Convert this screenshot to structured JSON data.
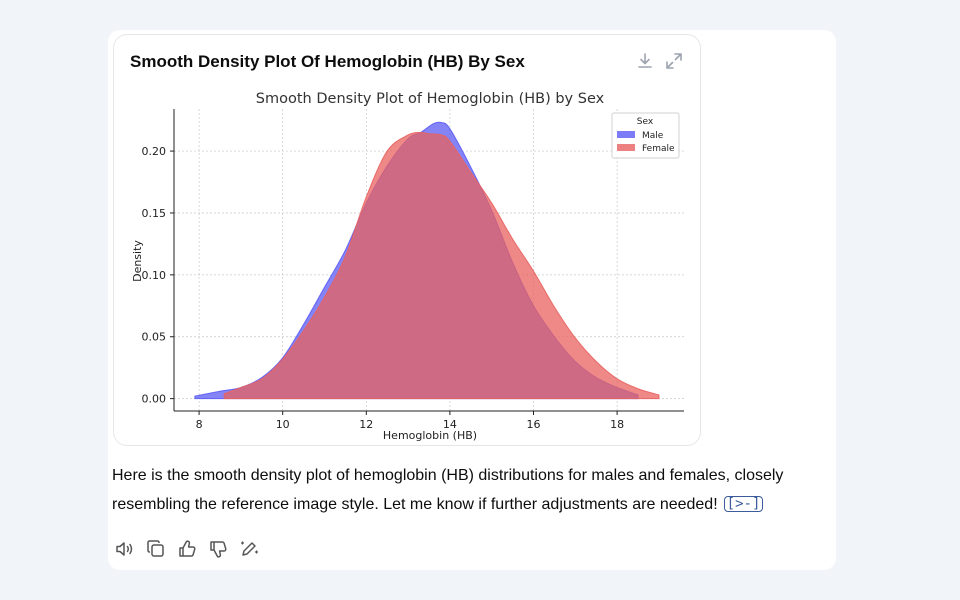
{
  "card": {
    "title": "Smooth Density Plot Of Hemoglobin (HB) By Sex",
    "download_icon": "download-icon",
    "expand_icon": "expand-icon"
  },
  "chart_data": {
    "type": "area",
    "title": "Smooth Density Plot of Hemoglobin (HB) by Sex",
    "xlabel": "Hemoglobin (HB)",
    "ylabel": "Density",
    "xlim": [
      7.4,
      19.6
    ],
    "ylim": [
      -0.01,
      0.234
    ],
    "xticks": [
      8,
      10,
      12,
      14,
      16,
      18
    ],
    "xtick_labels": [
      "8",
      "10",
      "12",
      "14",
      "16",
      "18"
    ],
    "yticks": [
      0.0,
      0.05,
      0.1,
      0.15,
      0.2
    ],
    "ytick_labels": [
      "0.00",
      "0.05",
      "0.10",
      "0.15",
      "0.20"
    ],
    "grid": true,
    "legend": {
      "title": "Sex",
      "position": "top-right"
    },
    "series": [
      {
        "name": "Male",
        "color": "#5b5bf4",
        "x": [
          7.9,
          8.5,
          9.0,
          9.5,
          10.0,
          10.5,
          11.0,
          11.5,
          12.0,
          12.5,
          13.0,
          13.3,
          13.6,
          13.8,
          14.0,
          14.5,
          15.0,
          15.5,
          16.0,
          16.5,
          17.0,
          17.5,
          18.0,
          18.5
        ],
        "values": [
          0.002,
          0.006,
          0.009,
          0.017,
          0.033,
          0.06,
          0.09,
          0.12,
          0.158,
          0.188,
          0.21,
          0.215,
          0.222,
          0.223,
          0.218,
          0.187,
          0.152,
          0.11,
          0.075,
          0.05,
          0.03,
          0.017,
          0.009,
          0.003
        ]
      },
      {
        "name": "Female",
        "color": "#e8625f",
        "x": [
          8.6,
          9.0,
          9.5,
          10.0,
          10.5,
          11.0,
          11.5,
          12.0,
          12.5,
          13.0,
          13.3,
          13.5,
          13.8,
          14.0,
          14.5,
          15.0,
          15.5,
          16.0,
          16.5,
          17.0,
          17.5,
          18.0,
          18.5,
          19.0
        ],
        "values": [
          0.004,
          0.009,
          0.016,
          0.032,
          0.055,
          0.082,
          0.115,
          0.163,
          0.2,
          0.213,
          0.215,
          0.214,
          0.213,
          0.208,
          0.183,
          0.158,
          0.129,
          0.103,
          0.074,
          0.049,
          0.03,
          0.016,
          0.008,
          0.003
        ]
      }
    ]
  },
  "message": {
    "text": "Here is the smooth density plot of hemoglobin (HB) distributions for males and females, closely resembling the reference image style. Let me know if further adjustments are needed!",
    "citation": "[>-]"
  },
  "actions": {
    "icons": [
      "read-aloud-icon",
      "copy-icon",
      "thumbs-up-icon",
      "thumbs-down-icon",
      "edit-icon"
    ]
  }
}
